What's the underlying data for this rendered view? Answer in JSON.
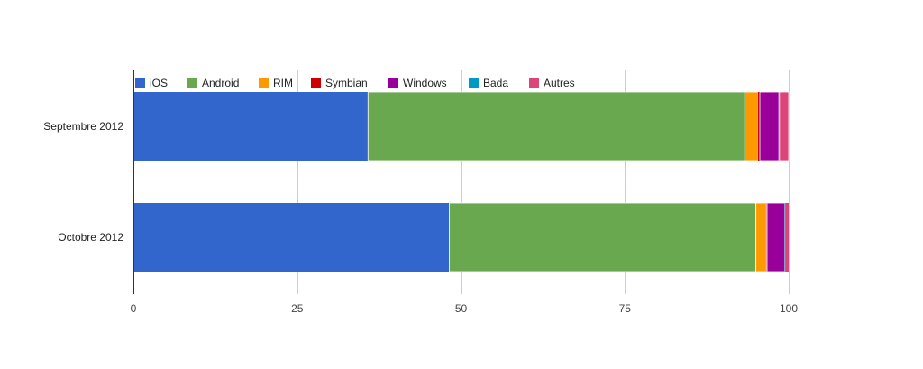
{
  "chart_data": {
    "type": "bar",
    "orientation": "horizontal",
    "stacked": true,
    "categories": [
      "Septembre 2012",
      "Octobre 2012"
    ],
    "series": [
      {
        "name": "iOS",
        "color": "#3366cc",
        "values": [
          35.8,
          48.2
        ]
      },
      {
        "name": "Android",
        "color": "#6aa84f",
        "values": [
          57.5,
          46.8
        ]
      },
      {
        "name": "RIM",
        "color": "#ff9900",
        "values": [
          2.0,
          1.6
        ]
      },
      {
        "name": "Symbian",
        "color": "#cc0000",
        "values": [
          0.3,
          0.1
        ]
      },
      {
        "name": "Windows",
        "color": "#990099",
        "values": [
          2.9,
          2.7
        ]
      },
      {
        "name": "Bada",
        "color": "#0099c6",
        "values": [
          0.1,
          0.1
        ]
      },
      {
        "name": "Autres",
        "color": "#dd4477",
        "values": [
          1.4,
          0.5
        ]
      }
    ],
    "xlim": [
      0,
      100
    ],
    "x_ticks": [
      0,
      25,
      50,
      75,
      100
    ],
    "grid": true,
    "legend_position": "top-left"
  }
}
